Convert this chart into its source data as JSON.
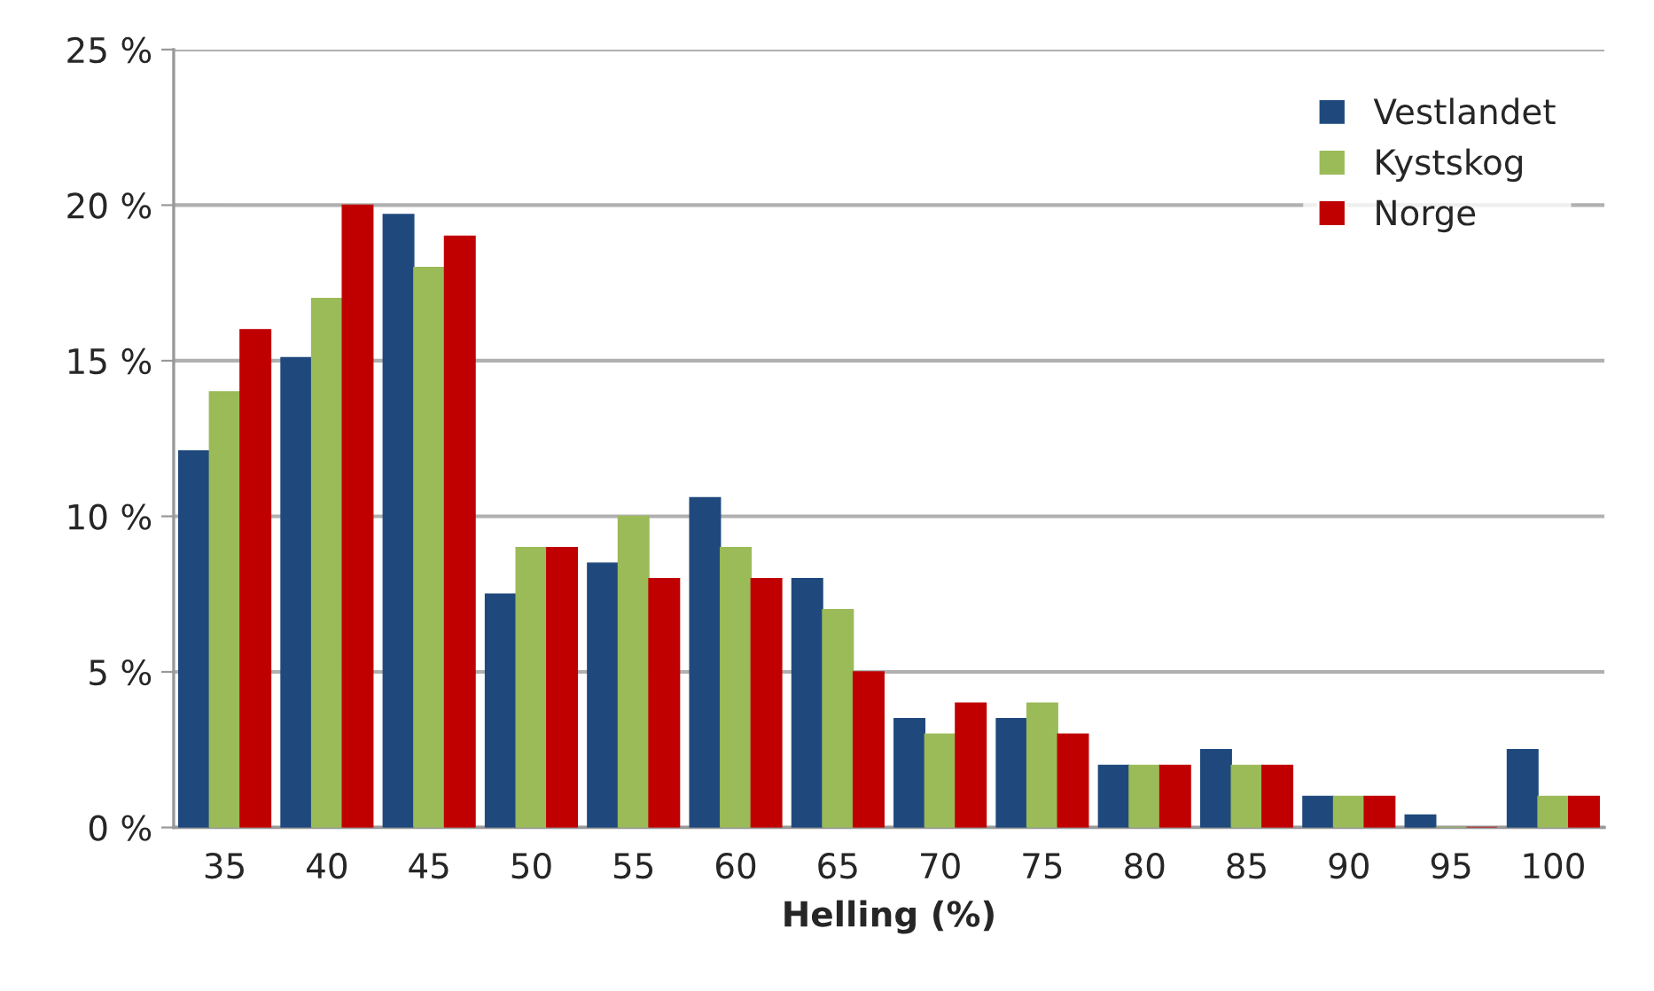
{
  "chart_data": {
    "type": "bar",
    "xlabel": "Helling (%)",
    "categories": [
      "35",
      "40",
      "45",
      "50",
      "55",
      "60",
      "65",
      "70",
      "75",
      "80",
      "85",
      "90",
      "95",
      "100"
    ],
    "series": [
      {
        "name": "Vestlandet",
        "color": "#1f497d",
        "values": [
          12.1,
          15.1,
          19.7,
          7.5,
          8.5,
          10.6,
          8,
          3.5,
          3.5,
          2,
          2.5,
          1,
          0.4,
          2.5
        ]
      },
      {
        "name": "Kystskog",
        "color": "#9bbb59",
        "values": [
          14,
          17,
          18,
          9,
          10,
          9,
          7,
          3,
          4,
          2,
          2,
          1,
          0,
          1
        ]
      },
      {
        "name": "Norge",
        "color": "#c00000",
        "values": [
          16,
          20,
          19,
          9,
          8,
          8,
          5,
          4,
          3,
          2,
          2,
          1,
          0,
          1
        ]
      }
    ],
    "ylim": [
      0,
      25
    ],
    "yticks": [
      {
        "value": 0,
        "label": "0 %"
      },
      {
        "value": 5,
        "label": "5 %"
      },
      {
        "value": 10,
        "label": "10 %"
      },
      {
        "value": 15,
        "label": "15 %"
      },
      {
        "value": 20,
        "label": "20 %"
      },
      {
        "value": 25,
        "label": "25 %"
      }
    ],
    "grid": "y",
    "legend": "top right"
  }
}
